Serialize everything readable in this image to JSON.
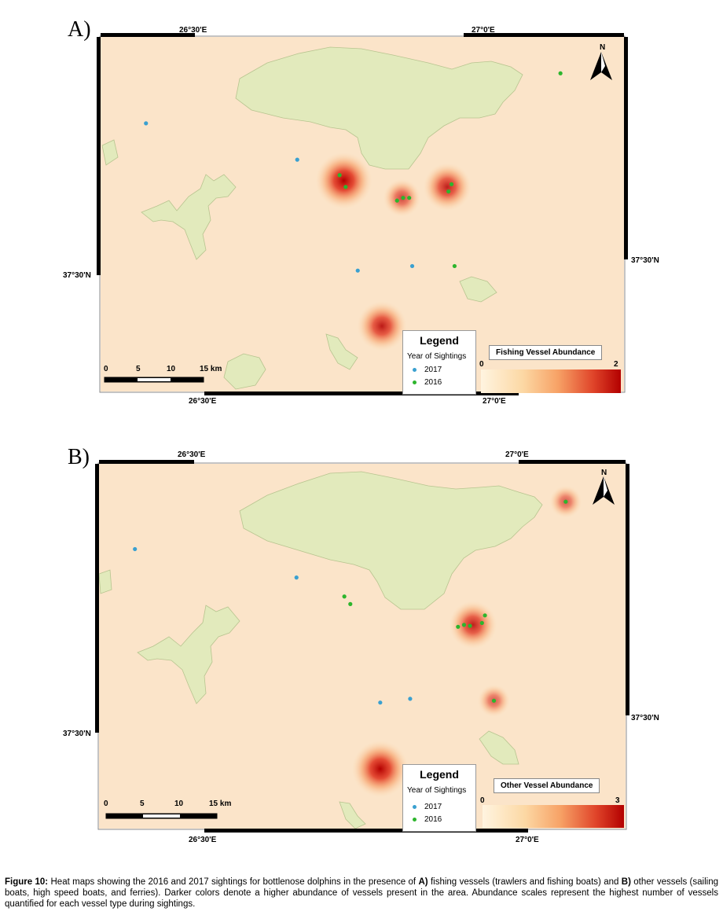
{
  "panels": [
    {
      "id": "A",
      "label": "A)",
      "coords": {
        "top_left_lon": "26°30'E",
        "top_right_lon": "27°0'E",
        "bottom_left_lon": "26°30'E",
        "bottom_right_lon": "27°0'E",
        "left_lat": "37°30'N",
        "right_lat": "37°30'N"
      },
      "legend": {
        "title": "Legend",
        "subtitle": "Year of Sightings",
        "items": [
          {
            "label": "2017",
            "color": "#3aa0d0"
          },
          {
            "label": "2016",
            "color": "#2db52d"
          }
        ]
      },
      "abundance": {
        "title": "Fishing Vessel Abundance",
        "min": "0",
        "max": "2"
      },
      "scale_bar": {
        "labels": [
          "0",
          "5",
          "10",
          "15 km"
        ]
      },
      "north": "N",
      "sightings": {
        "2017": [
          [
            26.35,
            37.66
          ],
          [
            26.6,
            37.62
          ],
          [
            26.7,
            37.498
          ],
          [
            26.79,
            37.503
          ]
        ],
        "2016": [
          [
            26.67,
            37.603
          ],
          [
            26.68,
            37.59
          ],
          [
            26.765,
            37.575
          ],
          [
            26.775,
            37.578
          ],
          [
            26.785,
            37.578
          ],
          [
            26.85,
            37.585
          ],
          [
            26.855,
            37.593
          ],
          [
            26.86,
            37.503
          ],
          [
            27.035,
            37.715
          ]
        ]
      },
      "heat_spots": [
        {
          "lon": 26.677,
          "lat": 37.597,
          "level": 1.0
        },
        {
          "lon": 26.848,
          "lat": 37.59,
          "level": 0.75
        },
        {
          "lon": 26.773,
          "lat": 37.578,
          "level": 0.45
        },
        {
          "lon": 26.74,
          "lat": 37.437,
          "level": 0.8
        }
      ]
    },
    {
      "id": "B",
      "label": "B)",
      "coords": {
        "top_left_lon": "26°30'E",
        "top_right_lon": "27°0'E",
        "bottom_left_lon": "26°30'E",
        "bottom_right_lon": "27°0'E",
        "left_lat": "37°30'N",
        "right_lat": "37°30'N"
      },
      "legend": {
        "title": "Legend",
        "subtitle": "Year of Sightings",
        "items": [
          {
            "label": "2017",
            "color": "#3aa0d0"
          },
          {
            "label": "2016",
            "color": "#2db52d"
          }
        ]
      },
      "abundance": {
        "title": "Other Vessel Abundance",
        "min": "0",
        "max": "3"
      },
      "scale_bar": {
        "labels": [
          "0",
          "5",
          "10",
          "15 km"
        ]
      },
      "north": "N",
      "sightings": {
        "2017": [
          [
            26.33,
            37.665
          ],
          [
            26.6,
            37.635
          ],
          [
            26.74,
            37.503
          ],
          [
            26.79,
            37.507
          ]
        ],
        "2016": [
          [
            26.68,
            37.615
          ],
          [
            26.69,
            37.607
          ],
          [
            26.87,
            37.583
          ],
          [
            26.88,
            37.585
          ],
          [
            26.89,
            37.584
          ],
          [
            26.91,
            37.587
          ],
          [
            26.915,
            37.595
          ],
          [
            26.93,
            37.505
          ],
          [
            27.05,
            37.715
          ]
        ]
      },
      "heat_spots": [
        {
          "lon": 26.895,
          "lat": 37.585,
          "level": 0.75
        },
        {
          "lon": 27.05,
          "lat": 37.715,
          "level": 0.3
        },
        {
          "lon": 26.93,
          "lat": 37.505,
          "level": 0.3
        },
        {
          "lon": 26.74,
          "lat": 37.433,
          "level": 1.0
        }
      ]
    }
  ],
  "colors": {
    "sea": "#fbe4c9",
    "land": "#e2eabc",
    "land_stroke": "#b7c48f",
    "heat_high": "#b30000",
    "heat_low": "#fdd9a8"
  },
  "caption": {
    "prefix": "Figure 10:",
    "text_1": " Heat maps showing the 2016 and 2017 sightings for bottlenose dolphins in the presence of ",
    "label_a": "A)",
    "text_2": " fishing vessels (trawlers and fishing boats) and ",
    "label_b": "B)",
    "text_3": " other vessels (sailing boats, high speed boats, and ferries). Darker colors denote a higher abundance of vessels present in the area. Abundance scales represent the highest number of vessels quantified for each vessel type during sightings."
  }
}
